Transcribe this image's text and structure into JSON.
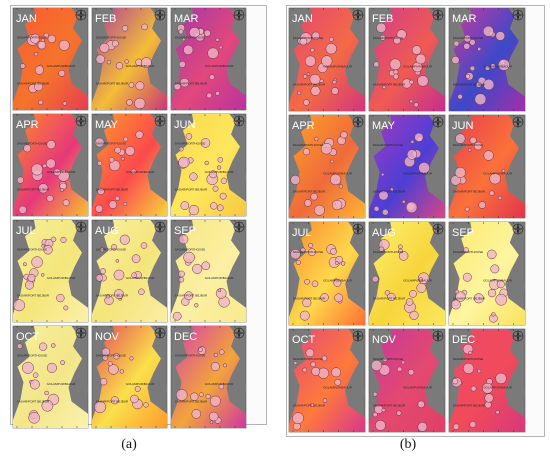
{
  "panels": [
    {
      "caption": "(a)",
      "month_labels": [
        "JAN",
        "FEB",
        "MAR",
        "APR",
        "MAY",
        "JUN",
        "JUL",
        "AUG",
        "SEP",
        "OCT",
        "NOV",
        "DEC"
      ],
      "month_fills": [
        [
          "#fa5a35",
          "#f5742a",
          "#e63e53"
        ],
        [
          "#a93a9e",
          "#f4bd37",
          "#c73779"
        ],
        [
          "#a137aa",
          "#e2487b",
          "#b933a0"
        ],
        [
          "#ff8a25",
          "#e7387a",
          "#f7c031"
        ],
        [
          "#ff9a2a",
          "#fb4a4d",
          "#f8d43d"
        ],
        [
          "#fbd94a",
          "#fde75f",
          "#f9c73e"
        ],
        [
          "#f6ef9c",
          "#f4e67a",
          "#fdf0a8"
        ],
        [
          "#f8f09f",
          "#f4e57b",
          "#fbeea4"
        ],
        [
          "#f5e680",
          "#fbf0a3",
          "#f8ea8c"
        ],
        [
          "#f7ef9c",
          "#f3e689",
          "#fbf2ad"
        ],
        [
          "#e4475b",
          "#fae04a",
          "#ff9b2d"
        ],
        [
          "#d53bb2",
          "#f2a53a",
          "#ce37a3"
        ]
      ]
    },
    {
      "caption": "(b)",
      "month_labels": [
        "JAN",
        "FEB",
        "MAR",
        "APR",
        "MAY",
        "JUN",
        "JUL",
        "AUG",
        "SEP",
        "OCT",
        "NOV",
        "DEC"
      ],
      "month_fills": [
        [
          "#e54472",
          "#f36a45",
          "#d2357e"
        ],
        [
          "#d33b8c",
          "#ef5b52",
          "#c42e8f"
        ],
        [
          "#d1389d",
          "#3c49c8",
          "#a230a8"
        ],
        [
          "#ffa22a",
          "#ef6a3b",
          "#ffb532"
        ],
        [
          "#a539c0",
          "#4b3fd5",
          "#d74686"
        ],
        [
          "#e83d4e",
          "#fb713a",
          "#e2344e"
        ],
        [
          "#fa8a2c",
          "#fed94c",
          "#ff6f34"
        ],
        [
          "#fdf071",
          "#f7d53b",
          "#fbe760"
        ],
        [
          "#fbe96a",
          "#fdf5a0",
          "#f8e35e"
        ],
        [
          "#e3477b",
          "#ff7a3a",
          "#d9378c"
        ],
        [
          "#c5389c",
          "#e4496f",
          "#e03f66"
        ],
        [
          "#ea4b6a",
          "#f14a5a",
          "#d8387d"
        ]
      ]
    }
  ],
  "map_labels": {
    "site_top": "SAGAR/PORTHOUSE",
    "site_right": "GOLAMPUR/BAIJUR",
    "site_low": "SAGAR/PORT BEJBUR"
  },
  "colors": {
    "land": "#7a7a7a",
    "panel_border": "#a6a6a6",
    "bubble_fill": "#f0b4c8",
    "bubble_stroke": "#6b2f44"
  },
  "icons": [
    "compass-icon"
  ]
}
